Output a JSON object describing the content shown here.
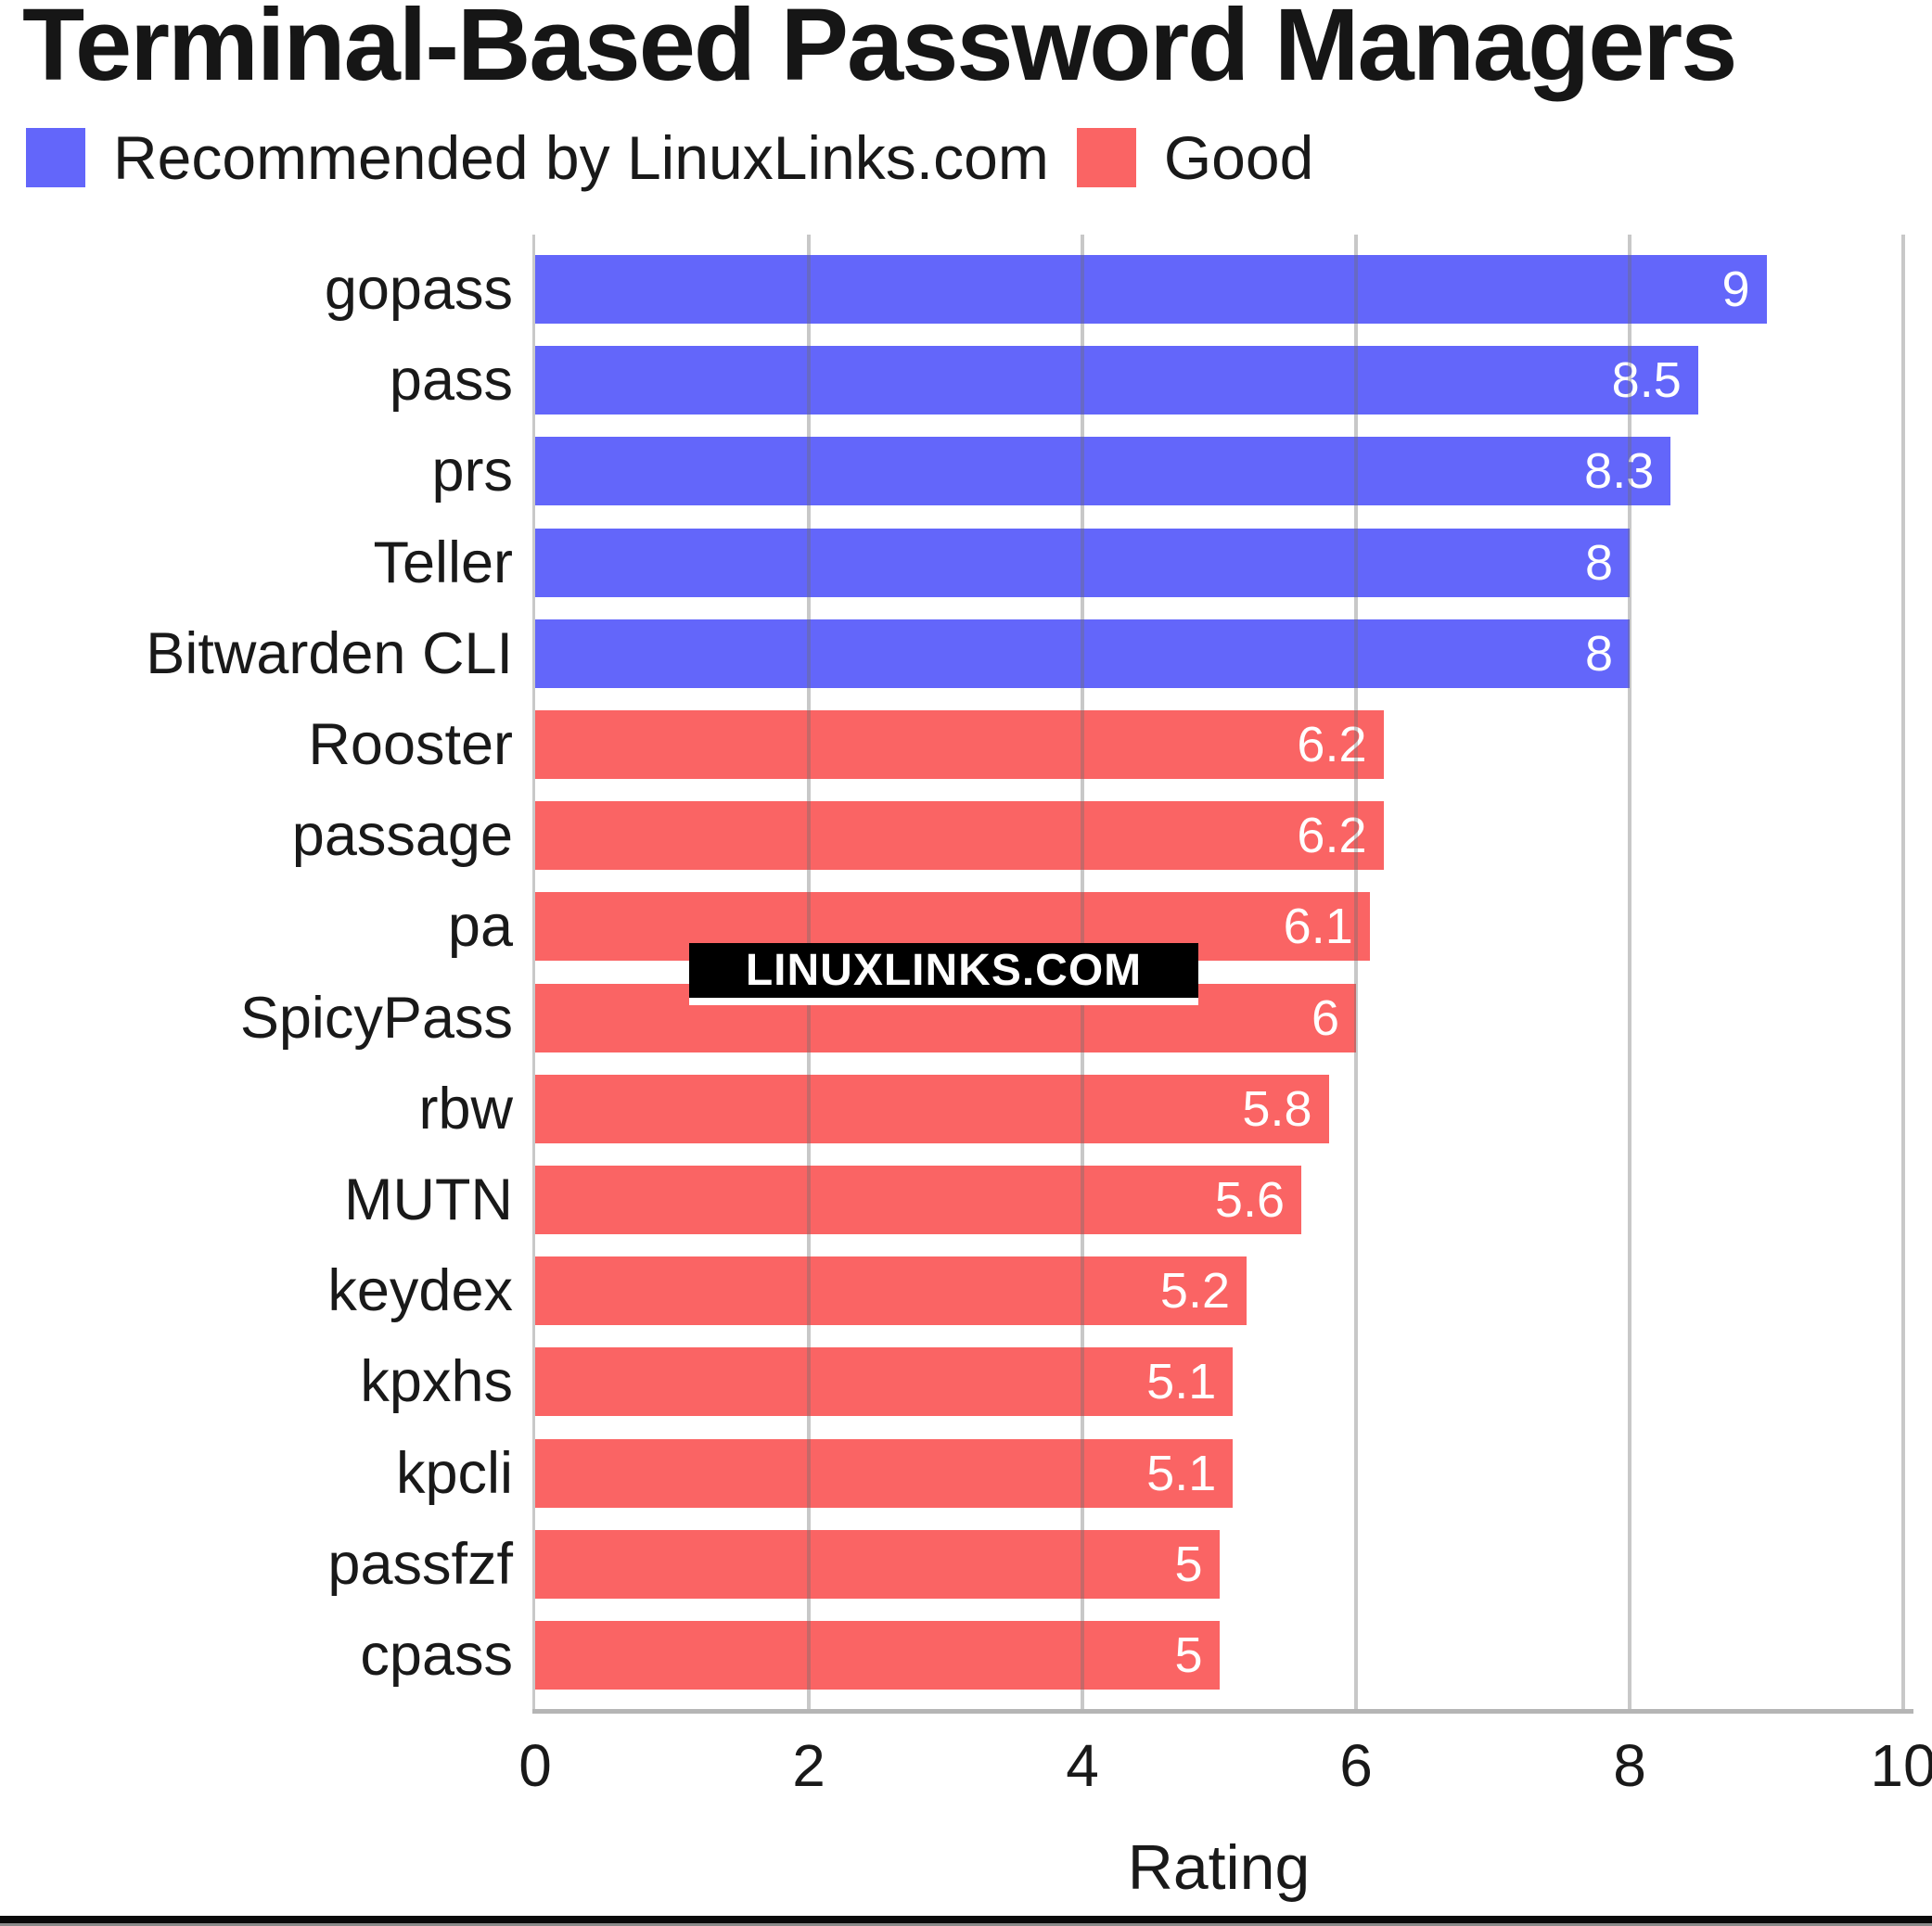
{
  "title": "Terminal-Based Password Managers",
  "legend": {
    "items": [
      {
        "label": "Recommended by LinuxLinks.com",
        "color": "#6366fa"
      },
      {
        "label": "Good",
        "color": "#fa6464"
      }
    ]
  },
  "watermark": {
    "text": "LINUXLINKS.COM"
  },
  "xaxis": {
    "label": "Rating"
  },
  "colors": {
    "recommended": "#6366fa",
    "good": "#fa6464",
    "grid": "rgba(110,110,110,0.38)",
    "axis_spine": "#c9c9c9",
    "bottom_spine": "#b5b5b5",
    "text": "#191919",
    "value_label": "#ffffff",
    "footer_bar": "#0a0a0a"
  },
  "chart_data": {
    "type": "bar",
    "orientation": "horizontal",
    "title": "Terminal-Based Password Managers",
    "xlabel": "Rating",
    "xlim": [
      0,
      10
    ],
    "xticks": [
      0,
      2,
      4,
      6,
      8,
      10
    ],
    "grid": "vertical gridlines every 2 units, drawn above bars",
    "legend_position": "top-left",
    "categories": [
      "gopass",
      "pass",
      "prs",
      "Teller",
      "Bitwarden CLI",
      "Rooster",
      "passage",
      "pa",
      "SpicyPass",
      "rbw",
      "MUTN",
      "keydex",
      "kpxhs",
      "kpcli",
      "passfzf",
      "cpass"
    ],
    "values": [
      9,
      8.5,
      8.3,
      8,
      8,
      6.2,
      6.2,
      6.1,
      6,
      5.8,
      5.6,
      5.2,
      5.1,
      5.1,
      5,
      5
    ],
    "value_labels": [
      "9",
      "8.5",
      "8.3",
      "8",
      "8",
      "6.2",
      "6.2",
      "6.1",
      "6",
      "5.8",
      "5.6",
      "5.2",
      "5.1",
      "5.1",
      "5",
      "5"
    ],
    "bar_series_index": [
      0,
      0,
      0,
      0,
      0,
      1,
      1,
      1,
      1,
      1,
      1,
      1,
      1,
      1,
      1,
      1
    ],
    "series": [
      {
        "name": "Recommended by LinuxLinks.com",
        "color": "#6366fa",
        "categories": [
          "gopass",
          "pass",
          "prs",
          "Teller",
          "Bitwarden CLI"
        ],
        "values": [
          9,
          8.5,
          8.3,
          8,
          8
        ]
      },
      {
        "name": "Good",
        "color": "#fa6464",
        "categories": [
          "Rooster",
          "passage",
          "pa",
          "SpicyPass",
          "rbw",
          "MUTN",
          "keydex",
          "kpxhs",
          "kpcli",
          "passfzf",
          "cpass"
        ],
        "values": [
          6.2,
          6.2,
          6.1,
          6,
          5.8,
          5.6,
          5.2,
          5.1,
          5.1,
          5,
          5
        ]
      }
    ]
  }
}
